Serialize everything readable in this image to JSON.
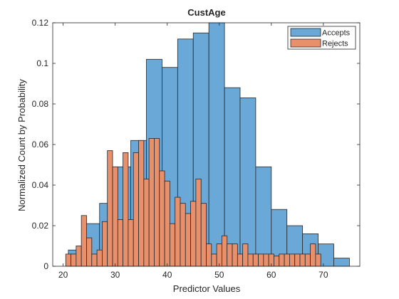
{
  "chart_data": {
    "type": "bar",
    "title": "CustAge",
    "xlabel": "Predictor Values",
    "ylabel": "Normalized Count by Probability",
    "xlim": [
      18,
      77
    ],
    "ylim": [
      0,
      0.12
    ],
    "xticks": [
      "20",
      "30",
      "40",
      "50",
      "60",
      "70"
    ],
    "yticks": [
      "0",
      "0.02",
      "0.04",
      "0.06",
      "0.08",
      "0.1",
      "0.12"
    ],
    "grid": false,
    "legend_position": "top-right",
    "series": [
      {
        "name": "Accepts",
        "color": "#6aa8d8",
        "edges": [
          21,
          24,
          27,
          30,
          33,
          36,
          39,
          42,
          45,
          48,
          51,
          54,
          57,
          60,
          63,
          66,
          69,
          72,
          75
        ],
        "values": [
          0.008,
          0.021,
          0.031,
          0.049,
          0.062,
          0.102,
          0.098,
          0.112,
          0.115,
          0.12,
          0.088,
          0.083,
          0.049,
          0.028,
          0.02,
          0.016,
          0.011,
          0.004
        ]
      },
      {
        "name": "Rejects",
        "color": "#e8906c",
        "edges": [
          20.5,
          21.5,
          22.5,
          23.5,
          24.5,
          25.5,
          26.5,
          27.5,
          28.5,
          29.5,
          30.5,
          31.5,
          32.5,
          33.5,
          34.5,
          35.5,
          36.5,
          37.5,
          38.5,
          39.5,
          40.5,
          41.5,
          42.5,
          43.5,
          44.5,
          45.5,
          46.5,
          47.5,
          48.5,
          49.5,
          50.5,
          51.5,
          52.5,
          53.5,
          54.5,
          55.5,
          56.5,
          57.5,
          58.5,
          59.5,
          60.5,
          61.5,
          62.5,
          63.5,
          64.5,
          65.5,
          66.5,
          67.5,
          68.5,
          69.5
        ],
        "values": [
          0.006,
          0.006,
          0.01,
          0.025,
          0.014,
          0.006,
          0.008,
          0.022,
          0.057,
          0.049,
          0.023,
          0.056,
          0.023,
          0.056,
          0.062,
          0.043,
          0.063,
          0.063,
          0.047,
          0.042,
          0.021,
          0.034,
          0.031,
          0.026,
          0.032,
          0.043,
          0.031,
          0.011,
          0.006,
          0.011,
          0.015,
          0.011,
          0.011,
          0.006,
          0.011,
          0.006,
          0.006,
          0.006,
          0.006,
          0.006,
          0.005,
          0.006,
          0.006,
          0.006,
          0.006,
          0.006,
          0.006,
          0.011,
          0.006
        ]
      }
    ]
  }
}
